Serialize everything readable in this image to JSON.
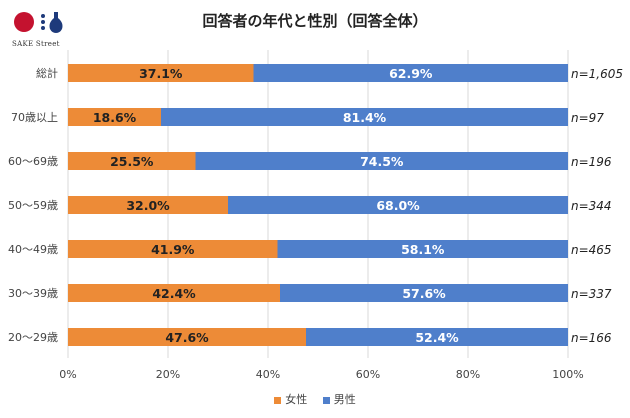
{
  "logo": {
    "text": "SAKE Street"
  },
  "chart_data": {
    "type": "bar",
    "stacked": true,
    "orientation": "horizontal",
    "title": "回答者の年代と性別（回答全体）",
    "categories": [
      "総計",
      "70歳以上",
      "60～69歳",
      "50～59歳",
      "40～49歳",
      "30～39歳",
      "20～29歳"
    ],
    "series": [
      {
        "name": "女性",
        "color": "#ED8B37",
        "values": [
          37.1,
          18.6,
          25.5,
          32.0,
          41.9,
          42.4,
          47.6
        ]
      },
      {
        "name": "男性",
        "color": "#4F7FCB",
        "values": [
          62.9,
          81.4,
          74.5,
          68.0,
          58.1,
          57.6,
          52.4
        ]
      }
    ],
    "n_labels": [
      "n=1,605",
      "n=97",
      "n=196",
      "n=344",
      "n=465",
      "n=337",
      "n=166"
    ],
    "xlim": [
      0,
      100
    ],
    "xticks": [
      "0%",
      "20%",
      "40%",
      "60%",
      "80%",
      "100%"
    ],
    "grid": true,
    "legend": "bottom"
  }
}
